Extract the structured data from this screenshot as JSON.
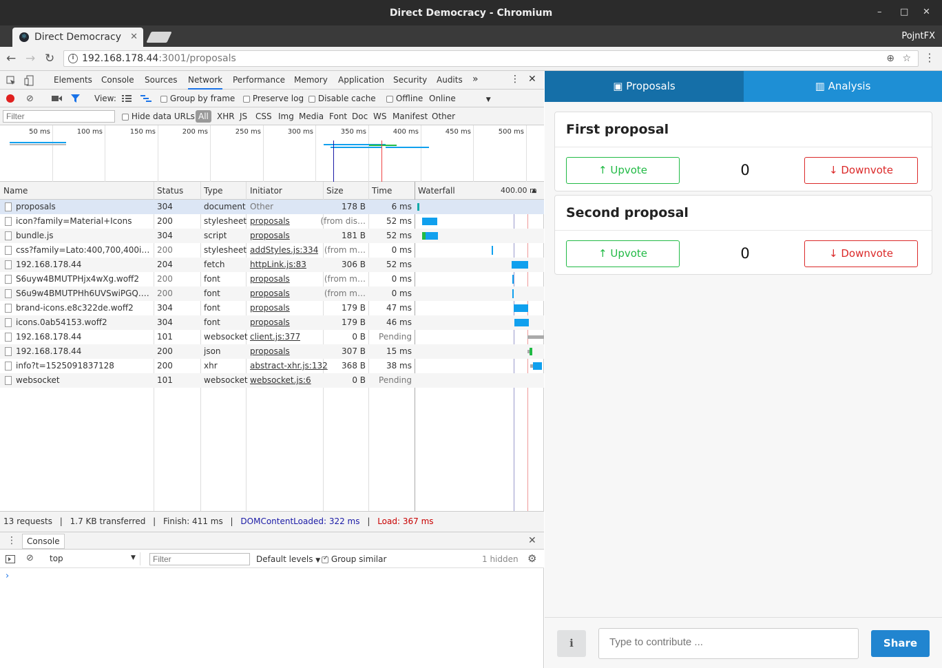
{
  "window": {
    "title": "Direct Democracy - Chromium",
    "min": "–",
    "max": "□",
    "close": "✕"
  },
  "tab": {
    "title": "Direct Democracy",
    "close": "✕",
    "profile": "PojntFX"
  },
  "address": {
    "host": "192.168.178.44",
    "path": ":3001/proposals"
  },
  "devtools": {
    "tabs": [
      "Elements",
      "Console",
      "Sources",
      "Network",
      "Performance",
      "Memory",
      "Application",
      "Security",
      "Audits"
    ],
    "more": "»",
    "toolbar": {
      "view": "View:",
      "group_by_frame": "Group by frame",
      "preserve_log": "Preserve log",
      "disable_cache": "Disable cache",
      "offline": "Offline",
      "throttle": "Online"
    },
    "filter": {
      "placeholder": "Filter",
      "hide_data_urls": "Hide data URLs",
      "all": "All",
      "types": [
        "XHR",
        "JS",
        "CSS",
        "Img",
        "Media",
        "Font",
        "Doc",
        "WS",
        "Manifest",
        "Other"
      ]
    },
    "overview_ticks": [
      "50 ms",
      "100 ms",
      "150 ms",
      "200 ms",
      "250 ms",
      "300 ms",
      "350 ms",
      "400 ms",
      "450 ms",
      "500 ms"
    ],
    "columns": {
      "name": "Name",
      "status": "Status",
      "type": "Type",
      "initiator": "Initiator",
      "size": "Size",
      "time": "Time",
      "waterfall": "Waterfall",
      "wf_time": "400.00 m"
    },
    "requests": [
      {
        "name": "proposals",
        "status": "304",
        "type": "document",
        "initiator": "Other",
        "size": "178 B",
        "time": "6 ms"
      },
      {
        "name": "icon?family=Material+Icons",
        "status": "200",
        "type": "stylesheet",
        "initiator": "proposals",
        "size": "(from dis…",
        "time": "52 ms"
      },
      {
        "name": "bundle.js",
        "status": "304",
        "type": "script",
        "initiator": "proposals",
        "size": "181 B",
        "time": "52 ms"
      },
      {
        "name": "css?family=Lato:400,700,400italic,…",
        "status": "200",
        "type": "stylesheet",
        "initiator": "addStyles.js:334",
        "size": "(from m…",
        "time": "0 ms"
      },
      {
        "name": "192.168.178.44",
        "status": "204",
        "type": "fetch",
        "initiator": "httpLink.js:83",
        "size": "306 B",
        "time": "52 ms"
      },
      {
        "name": "S6uyw4BMUTPHjx4wXg.woff2",
        "status": "200",
        "type": "font",
        "initiator": "proposals",
        "size": "(from m…",
        "time": "0 ms"
      },
      {
        "name": "S6u9w4BMUTPHh6UVSwiPGQ.wof…",
        "status": "200",
        "type": "font",
        "initiator": "proposals",
        "size": "(from m…",
        "time": "0 ms"
      },
      {
        "name": "brand-icons.e8c322de.woff2",
        "status": "304",
        "type": "font",
        "initiator": "proposals",
        "size": "179 B",
        "time": "47 ms"
      },
      {
        "name": "icons.0ab54153.woff2",
        "status": "304",
        "type": "font",
        "initiator": "proposals",
        "size": "179 B",
        "time": "46 ms"
      },
      {
        "name": "192.168.178.44",
        "status": "101",
        "type": "websocket",
        "initiator": "client.js:377",
        "size": "0 B",
        "time": "Pending"
      },
      {
        "name": "192.168.178.44",
        "status": "200",
        "type": "json",
        "initiator": "proposals",
        "size": "307 B",
        "time": "15 ms"
      },
      {
        "name": "info?t=1525091837128",
        "status": "200",
        "type": "xhr",
        "initiator": "abstract-xhr.js:132",
        "size": "368 B",
        "time": "38 ms"
      },
      {
        "name": "websocket",
        "status": "101",
        "type": "websocket",
        "initiator": "websocket.js:6",
        "size": "0 B",
        "time": "Pending"
      }
    ],
    "summary": {
      "requests": "13 requests",
      "transferred": "1.7 KB transferred",
      "finish": "Finish: 411 ms",
      "dcl": "DOMContentLoaded: 322 ms",
      "load": "Load: 367 ms",
      "sep": "|"
    },
    "console": {
      "tab": "Console",
      "context": "top",
      "filter_placeholder": "Filter",
      "levels": "Default levels",
      "group_similar": "Group similar",
      "hidden": "1 hidden",
      "prompt": "›"
    }
  },
  "app": {
    "tabs": {
      "proposals": "Proposals",
      "analysis": "Analysis"
    },
    "proposals": [
      {
        "title": "First proposal",
        "upvote": "Upvote",
        "downvote": "Downvote",
        "count": "0"
      },
      {
        "title": "Second proposal",
        "upvote": "Upvote",
        "downvote": "Downvote",
        "count": "0"
      }
    ],
    "footer": {
      "info": "i",
      "placeholder": "Type to contribute ...",
      "share": "Share"
    }
  },
  "colors": {
    "accent": "#1e8fd5",
    "upvote": "#21ba45",
    "downvote": "#db2828",
    "dcl": "#1a1aa6",
    "load": "#c80000"
  }
}
